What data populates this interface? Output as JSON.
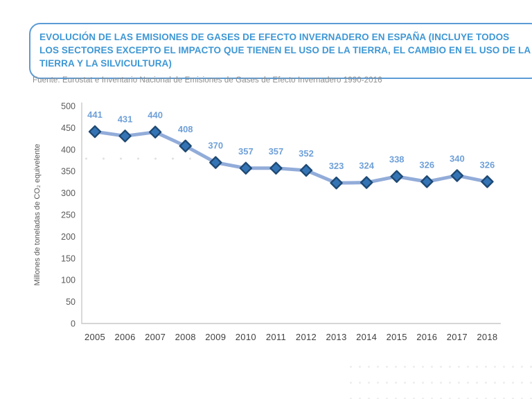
{
  "page": {
    "title": "EVOLUCIÓN DE LAS EMISIONES DE GASES DE EFECTO INVERNADERO EN ESPAÑA (INCLUYE TODOS LOS SECTORES EXCEPTO EL IMPACTO QUE TIENEN EL USO DE LA TIERRA, EL CAMBIO EN EL USO DE LA TIERRA Y LA SILVICULTURA)",
    "source": "Fuente: Eurostat e Inventario Nacional de Emisiones de Gases de Efecto Invernadero 1990-2016"
  },
  "colors": {
    "title_blue": "#3e97d4",
    "box_border": "#5b9bd5",
    "source_text": "#8c8c8c",
    "line": "#92acd9",
    "marker_fill": "#3474b5",
    "marker_stroke": "#1e4973",
    "data_label": "#6fa0d8",
    "axis": "#c9c9c9",
    "tick_text": "#595959",
    "x_tick_text": "#3f3f3f"
  },
  "chart_data": {
    "type": "line",
    "title": "",
    "x": [
      "2005",
      "2006",
      "2007",
      "2008",
      "2009",
      "2010",
      "2011",
      "2012",
      "2013",
      "2014",
      "2015",
      "2016",
      "2017",
      "2018"
    ],
    "values": [
      441,
      431,
      440,
      408,
      370,
      357,
      357,
      352,
      323,
      324,
      338,
      326,
      340,
      326
    ],
    "series_name": "Emisiones de gases de efecto invernadero",
    "xlabel": "",
    "ylabel": "Millones de toneladas de CO₂ equivelente",
    "ylim": [
      0,
      500
    ],
    "ytick_step": 50,
    "grid": false,
    "legend": "none",
    "marker": "diamond",
    "data_labels": true
  }
}
